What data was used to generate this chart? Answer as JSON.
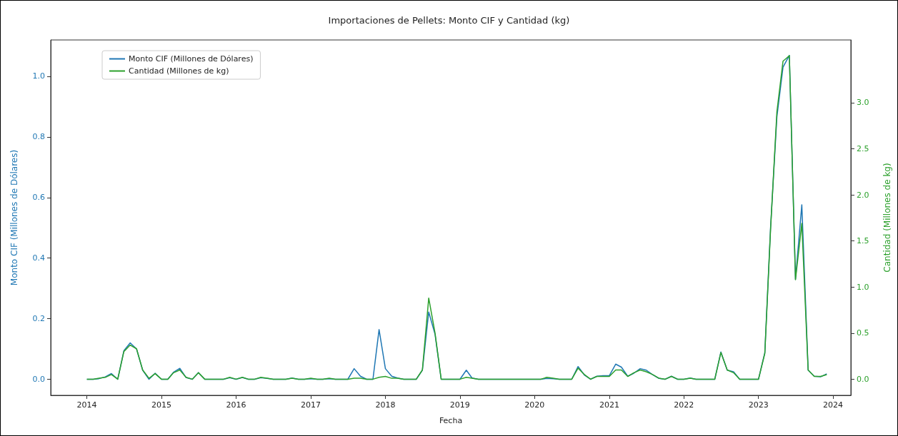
{
  "chart_data": {
    "type": "line",
    "title": "Importaciones de Pellets: Monto CIF y Cantidad (kg)",
    "xlabel": "Fecha",
    "ylabel": "Monto CIF (Millones de Dólares)",
    "y2label": "Cantidad (Millones de kg)",
    "x": [
      "2014-01",
      "2014-02",
      "2014-03",
      "2014-04",
      "2014-05",
      "2014-06",
      "2014-07",
      "2014-08",
      "2014-09",
      "2014-10",
      "2014-11",
      "2014-12",
      "2015-01",
      "2015-02",
      "2015-03",
      "2015-04",
      "2015-05",
      "2015-06",
      "2015-07",
      "2015-08",
      "2015-09",
      "2015-10",
      "2015-11",
      "2015-12",
      "2016-01",
      "2016-02",
      "2016-03",
      "2016-04",
      "2016-05",
      "2016-06",
      "2016-07",
      "2016-08",
      "2016-09",
      "2016-10",
      "2016-11",
      "2016-12",
      "2017-01",
      "2017-02",
      "2017-03",
      "2017-04",
      "2017-05",
      "2017-06",
      "2017-07",
      "2017-08",
      "2017-09",
      "2017-10",
      "2017-11",
      "2017-12",
      "2018-01",
      "2018-02",
      "2018-03",
      "2018-04",
      "2018-05",
      "2018-06",
      "2018-07",
      "2018-08",
      "2018-09",
      "2018-10",
      "2018-11",
      "2018-12",
      "2019-01",
      "2019-02",
      "2019-03",
      "2019-04",
      "2019-05",
      "2019-06",
      "2019-07",
      "2019-08",
      "2019-09",
      "2019-10",
      "2019-11",
      "2019-12",
      "2020-01",
      "2020-02",
      "2020-03",
      "2020-04",
      "2020-05",
      "2020-06",
      "2020-07",
      "2020-08",
      "2020-09",
      "2020-10",
      "2020-11",
      "2020-12",
      "2021-01",
      "2021-02",
      "2021-03",
      "2021-04",
      "2021-05",
      "2021-06",
      "2021-07",
      "2021-08",
      "2021-09",
      "2021-10",
      "2021-11",
      "2021-12",
      "2022-01",
      "2022-02",
      "2022-03",
      "2022-04",
      "2022-05",
      "2022-06",
      "2022-07",
      "2022-08",
      "2022-09",
      "2022-10",
      "2022-11",
      "2022-12",
      "2023-01",
      "2023-02",
      "2023-03",
      "2023-04",
      "2023-05",
      "2023-06",
      "2023-07",
      "2023-08",
      "2023-09",
      "2023-10",
      "2023-11",
      "2023-12"
    ],
    "series": [
      {
        "name": "Monto CIF (Millones de Dólares)",
        "color": "#1f77b4",
        "values": [
          0,
          0,
          0.002,
          0.008,
          0.019,
          0,
          0.094,
          0.12,
          0.1,
          0.03,
          0,
          0.02,
          0,
          0,
          0.023,
          0.036,
          0.006,
          0,
          0.022,
          0,
          0,
          0,
          0,
          0.005,
          0,
          0.006,
          0,
          0,
          0.005,
          0.003,
          0,
          0,
          0,
          0.004,
          0,
          0,
          0.002,
          0,
          0,
          0.002,
          0,
          0,
          0,
          0.035,
          0.01,
          0,
          0,
          0.164,
          0.035,
          0.01,
          0.004,
          0,
          0,
          0,
          0.03,
          0.222,
          0.148,
          0,
          0,
          0,
          0,
          0.03,
          0.004,
          0,
          0,
          0,
          0,
          0,
          0,
          0,
          0,
          0,
          0,
          0,
          0.003,
          0.002,
          0,
          0,
          0,
          0.042,
          0.014,
          0,
          0.01,
          0.012,
          0.012,
          0.05,
          0.04,
          0.01,
          0.02,
          0.035,
          0.03,
          0.015,
          0.003,
          0,
          0.01,
          0,
          0,
          0.004,
          0,
          0,
          0,
          0,
          0.09,
          0.03,
          0.025,
          0,
          0,
          0,
          0,
          0.088,
          0.5,
          0.866,
          1.03,
          1.069,
          0.33,
          0.576,
          0.03,
          0.01,
          0.008,
          0.018
        ]
      },
      {
        "name": "Cantidad (Millones de kg)",
        "color": "#2ca02c",
        "axis": "y2",
        "values": [
          0,
          0,
          0.01,
          0.02,
          0.05,
          0,
          0.3,
          0.37,
          0.33,
          0.1,
          0.01,
          0.06,
          0,
          0,
          0.07,
          0.1,
          0.02,
          0,
          0.07,
          0,
          0,
          0,
          0,
          0.02,
          0,
          0.02,
          0,
          0,
          0.02,
          0.01,
          0,
          0,
          0,
          0.01,
          0,
          0,
          0.01,
          0,
          0,
          0.01,
          0,
          0,
          0,
          0.01,
          0.01,
          0,
          0,
          0.02,
          0.03,
          0.01,
          0.01,
          0,
          0,
          0,
          0.1,
          0.88,
          0.5,
          0,
          0,
          0,
          0,
          0.02,
          0.01,
          0,
          0,
          0,
          0,
          0,
          0,
          0,
          0,
          0,
          0,
          0,
          0.02,
          0.01,
          0,
          0,
          0,
          0.12,
          0.05,
          0,
          0.03,
          0.03,
          0.03,
          0.1,
          0.1,
          0.03,
          0.07,
          0.1,
          0.08,
          0.05,
          0.01,
          0,
          0.03,
          0,
          0,
          0.01,
          0,
          0,
          0,
          0,
          0.29,
          0.1,
          0.07,
          0,
          0,
          0,
          0,
          0.28,
          1.62,
          2.9,
          3.45,
          3.51,
          1.08,
          1.69,
          0.1,
          0.03,
          0.03,
          0.05
        ]
      }
    ],
    "xlim": [
      "2013-07-08",
      "2024-03-28"
    ],
    "xticks": [
      "2014",
      "2015",
      "2016",
      "2017",
      "2018",
      "2019",
      "2020",
      "2021",
      "2022",
      "2023",
      "2024"
    ],
    "ylim": [
      -0.053,
      1.12
    ],
    "yticks": [
      {
        "value": 0,
        "label": "0.0"
      },
      {
        "value": 0.2,
        "label": "0.2"
      },
      {
        "value": 0.4,
        "label": "0.4"
      },
      {
        "value": 0.6,
        "label": "0.6"
      },
      {
        "value": 0.8,
        "label": "0.8"
      },
      {
        "value": 1,
        "label": "1.0"
      }
    ],
    "y2lim": [
      -0.175,
      3.68
    ],
    "y2ticks": [
      {
        "value": 0,
        "label": "0.0"
      },
      {
        "value": 0.5,
        "label": "0.5"
      },
      {
        "value": 1,
        "label": "1.0"
      },
      {
        "value": 1.5,
        "label": "1.5"
      },
      {
        "value": 2,
        "label": "2.0"
      },
      {
        "value": 2.5,
        "label": "2.5"
      },
      {
        "value": 3,
        "label": "3.0"
      }
    ],
    "legend": "top left",
    "grid": false,
    "marker": "none",
    "line_style": "solid"
  }
}
